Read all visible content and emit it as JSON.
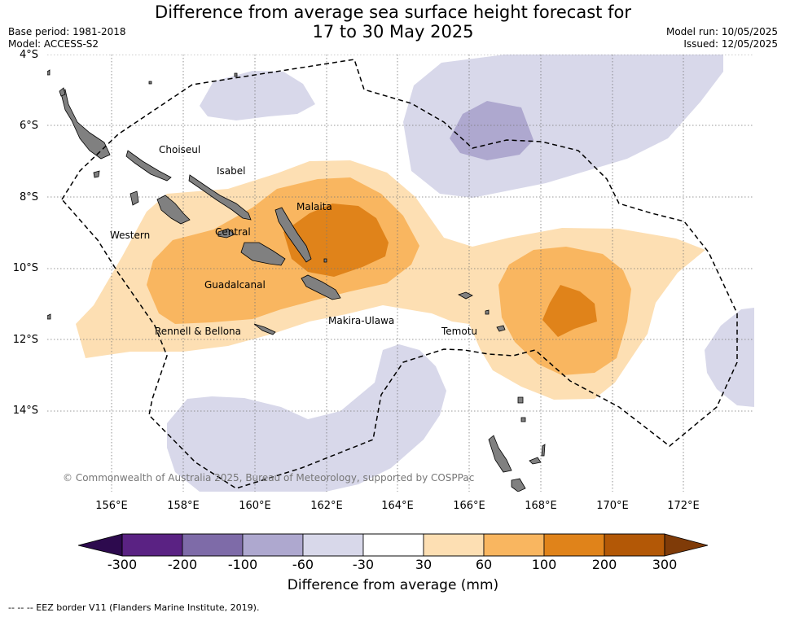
{
  "title": {
    "line1": "Difference from average sea surface height forecast for",
    "line2": "17 to 30 May 2025"
  },
  "meta_left": {
    "base_period": "Base period: 1981-2018",
    "model": "Model: ACCESS-S2"
  },
  "meta_right": {
    "model_run": "Model run: 10/05/2025",
    "issued": "Issued: 12/05/2025"
  },
  "map": {
    "lat_labels": [
      "4°S",
      "6°S",
      "8°S",
      "10°S",
      "12°S",
      "14°S"
    ],
    "lon_labels": [
      "156°E",
      "158°E",
      "160°E",
      "162°E",
      "164°E",
      "166°E",
      "168°E",
      "170°E",
      "172°E"
    ],
    "provinces": [
      "Choiseul",
      "Isabel",
      "Malaita",
      "Western",
      "Central",
      "Guadalcanal",
      "Rennell & Bellona",
      "Makira-Ulawa",
      "Temotu"
    ],
    "land_color": "#808080",
    "grid_style": "dotted",
    "copyright": "© Commonwealth of Australia 2025, Bureau of Meteorology, supported by COSPPac"
  },
  "colorbar": {
    "tick_labels": [
      "-300",
      "-200",
      "-100",
      "-60",
      "-30",
      "30",
      "60",
      "100",
      "200",
      "300"
    ],
    "colors": [
      "#5a2283",
      "#7e6ba8",
      "#aea8cf",
      "#d8d8ea",
      "#ffffff",
      "#fddfb3",
      "#f9b660",
      "#e0831a",
      "#b35806"
    ],
    "extend_low_color": "#2d0a4e",
    "extend_high_color": "#7f3b08",
    "title": "Difference from average (mm)"
  },
  "footnote": "--  --  -- EEZ border V11 (Flanders Marine Institute, 2019)."
}
